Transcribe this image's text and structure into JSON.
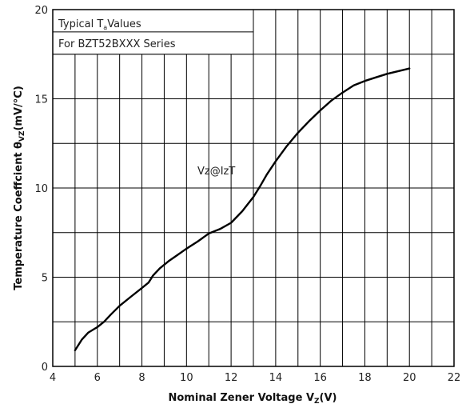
{
  "chart_data": {
    "type": "line",
    "title": "",
    "xlabel": "Nominal Zener Voltage  V",
    "xlabel_sub": "Z",
    "xlabel_suffix": "(V)",
    "ylabel": "Temperature Coeffcient  θ",
    "ylabel_sub": "VZ",
    "ylabel_suffix": "(mV/°C)",
    "xlim": [
      4,
      22
    ],
    "ylim": [
      0,
      20
    ],
    "x_ticks": [
      4,
      6,
      8,
      10,
      12,
      14,
      16,
      18,
      20,
      22
    ],
    "y_ticks": [
      0,
      5,
      10,
      15,
      20
    ],
    "grid": true,
    "legend_box": {
      "line1_prefix": "Typical T",
      "line1_sub": "a",
      "line1_suffix": "Values",
      "line2": "For BZT52BXXX Series",
      "placement": "top-left"
    },
    "annotation": "Vz@IzT",
    "series": [
      {
        "x": [
          5.0,
          5.3,
          5.6,
          6.0,
          6.3,
          6.6,
          7.0,
          7.5,
          8.0,
          8.3,
          8.5,
          8.8,
          9.2,
          9.6,
          10.0,
          10.5,
          11.0,
          11.5,
          12.0,
          12.5,
          13.0,
          13.3,
          13.6,
          14.0,
          14.5,
          15.0,
          15.5,
          16.0,
          16.5,
          17.0,
          17.5,
          18.0,
          18.5,
          19.0,
          19.5,
          20.0
        ],
        "y": [
          0.9,
          1.5,
          1.9,
          2.2,
          2.5,
          2.9,
          3.4,
          3.9,
          4.4,
          4.7,
          5.1,
          5.5,
          5.9,
          6.25,
          6.6,
          7.0,
          7.45,
          7.7,
          8.05,
          8.7,
          9.5,
          10.1,
          10.75,
          11.5,
          12.35,
          13.1,
          13.75,
          14.35,
          14.9,
          15.35,
          15.75,
          16.0,
          16.2,
          16.4,
          16.55,
          16.7
        ]
      }
    ]
  }
}
